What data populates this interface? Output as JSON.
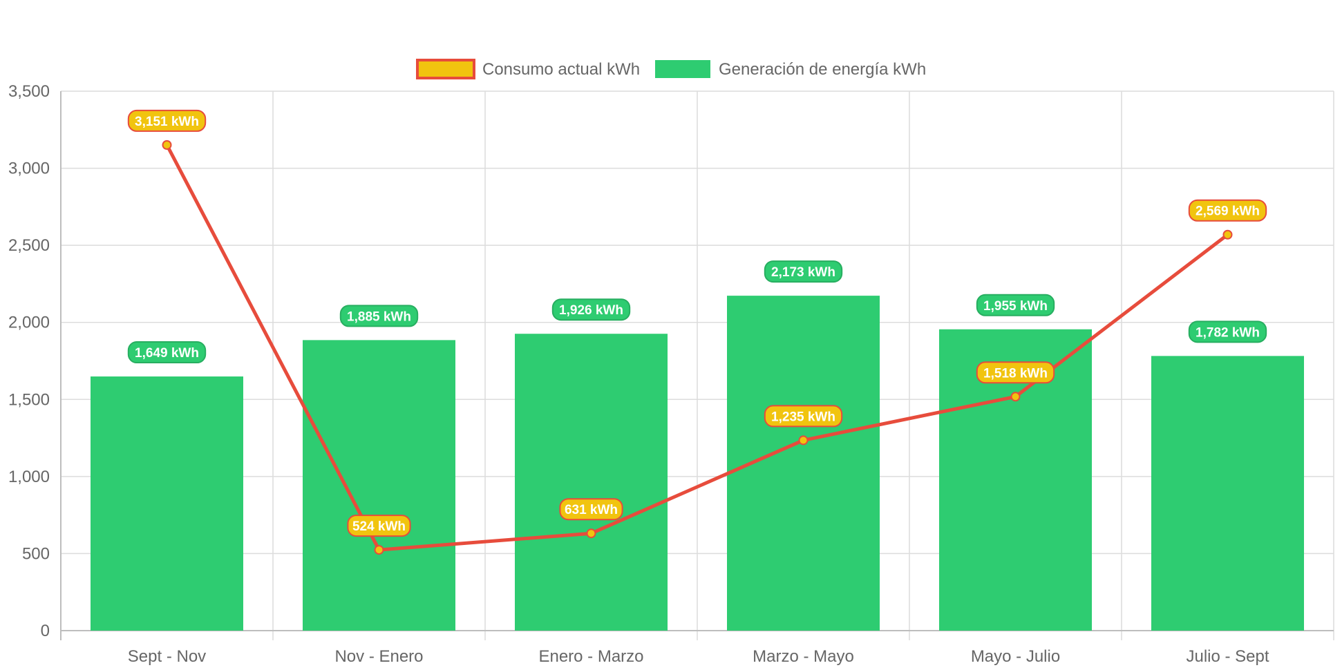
{
  "chart_data": {
    "type": "bar",
    "categories": [
      "Sept - Nov",
      "Nov - Enero",
      "Enero - Marzo",
      "Marzo - Mayo",
      "Mayo - Julio",
      "Julio - Sept"
    ],
    "ylim": [
      0,
      3500
    ],
    "yticks": [
      0,
      500,
      1000,
      1500,
      2000,
      2500,
      3000,
      3500
    ],
    "ytick_labels": [
      "0",
      "500",
      "1,000",
      "1,500",
      "2,000",
      "2,500",
      "3,000",
      "3,500"
    ],
    "grid": true,
    "legend_position": "top",
    "series": [
      {
        "name": "Generación de energía kWh",
        "type": "bar",
        "values": [
          1649,
          1885,
          1926,
          2173,
          1955,
          1782
        ],
        "labels": [
          "1,649 kWh",
          "1,885 kWh",
          "1,926 kWh",
          "2,173 kWh",
          "1,955 kWh",
          "1,782 kWh"
        ],
        "color": "#2ecc71",
        "label_bg": "#2ecc71",
        "label_border": "#27ae60"
      },
      {
        "name": "Consumo actual kWh",
        "type": "line",
        "values": [
          3151,
          524,
          631,
          1235,
          1518,
          2569
        ],
        "labels": [
          "3,151 kWh",
          "524 kWh",
          "631 kWh",
          "1,235 kWh",
          "1,518 kWh",
          "2,569 kWh"
        ],
        "color": "#e74c3c",
        "fill": "#f1c40f",
        "label_bg": "#f1c40f",
        "label_border": "#e74c3c"
      }
    ]
  }
}
